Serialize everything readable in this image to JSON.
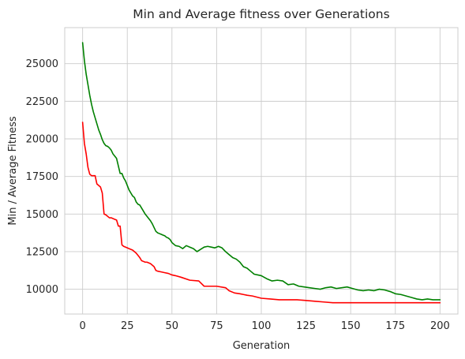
{
  "chart_data": {
    "type": "line",
    "title": "Min and Average fitness over Generations",
    "xlabel": "Generation",
    "ylabel": "Min / Average Fitness",
    "xlim": [
      -10,
      210
    ],
    "ylim": [
      8350,
      27400
    ],
    "xticks": [
      0,
      25,
      50,
      75,
      100,
      125,
      150,
      175,
      200
    ],
    "yticks": [
      10000,
      12500,
      15000,
      17500,
      20000,
      22500,
      25000
    ],
    "ytick_labels": [
      "10000",
      "12500",
      "15000",
      "17500",
      "20000",
      "22500",
      "25000"
    ],
    "grid": true,
    "series": [
      {
        "color": "#008000",
        "x": [
          0,
          1,
          2,
          3,
          4,
          5,
          6,
          7,
          8,
          9,
          10,
          11,
          12,
          13,
          14,
          15,
          16,
          17,
          18,
          19,
          20,
          21,
          22,
          23,
          24,
          25,
          26,
          27,
          28,
          29,
          30,
          31,
          32,
          33,
          34,
          35,
          36,
          37,
          38,
          39,
          40,
          41,
          42,
          43,
          44,
          45,
          46,
          47,
          48,
          49,
          50,
          52,
          54,
          56,
          58,
          60,
          62,
          64,
          66,
          68,
          70,
          72,
          74,
          76,
          78,
          80,
          82,
          84,
          86,
          88,
          90,
          92,
          94,
          96,
          98,
          100,
          103,
          106,
          109,
          112,
          115,
          118,
          121,
          124,
          127,
          130,
          133,
          136,
          139,
          142,
          145,
          148,
          151,
          154,
          157,
          160,
          163,
          166,
          169,
          172,
          175,
          178,
          181,
          184,
          187,
          190,
          193,
          196,
          200
        ],
        "values": [
          26400,
          25200,
          24300,
          23600,
          22900,
          22300,
          21800,
          21400,
          21000,
          20600,
          20300,
          19950,
          19700,
          19550,
          19500,
          19400,
          19250,
          19000,
          18850,
          18700,
          18200,
          17700,
          17700,
          17400,
          17200,
          16900,
          16600,
          16400,
          16200,
          16100,
          15800,
          15650,
          15600,
          15400,
          15200,
          15000,
          14850,
          14700,
          14550,
          14350,
          14100,
          13850,
          13750,
          13700,
          13650,
          13600,
          13550,
          13450,
          13400,
          13300,
          13100,
          12900,
          12850,
          12700,
          12900,
          12800,
          12700,
          12500,
          12650,
          12800,
          12850,
          12800,
          12750,
          12850,
          12750,
          12500,
          12300,
          12100,
          12000,
          11800,
          11500,
          11400,
          11200,
          11000,
          10950,
          10900,
          10700,
          10550,
          10600,
          10550,
          10300,
          10350,
          10200,
          10150,
          10100,
          10050,
          10000,
          10100,
          10150,
          10050,
          10100,
          10150,
          10050,
          9950,
          9900,
          9950,
          9900,
          10000,
          9950,
          9850,
          9700,
          9650,
          9550,
          9450,
          9350,
          9300,
          9350,
          9300,
          9300
        ]
      },
      {
        "color": "#ff0000",
        "x": [
          0,
          1,
          2,
          3,
          4,
          5,
          7,
          8,
          10,
          11,
          12,
          13,
          15,
          16,
          18,
          19,
          20,
          21,
          22,
          23,
          25,
          26,
          28,
          30,
          32,
          33,
          34,
          35,
          36,
          38,
          40,
          41,
          42,
          44,
          46,
          48,
          50,
          52,
          55,
          60,
          65,
          68,
          72,
          75,
          80,
          82,
          85,
          88,
          90,
          92,
          95,
          100,
          105,
          110,
          120,
          125,
          130,
          135,
          140,
          145,
          150,
          160,
          170,
          180,
          190,
          200
        ],
        "values": [
          21100,
          19700,
          19000,
          18100,
          17650,
          17550,
          17550,
          17000,
          16800,
          16400,
          15000,
          14950,
          14750,
          14750,
          14650,
          14600,
          14200,
          14200,
          12950,
          12850,
          12750,
          12700,
          12600,
          12400,
          12100,
          11900,
          11850,
          11800,
          11800,
          11700,
          11500,
          11250,
          11200,
          11150,
          11100,
          11050,
          10950,
          10900,
          10800,
          10600,
          10550,
          10200,
          10200,
          10200,
          10100,
          9900,
          9750,
          9700,
          9650,
          9600,
          9550,
          9400,
          9350,
          9300,
          9300,
          9250,
          9200,
          9150,
          9100,
          9100,
          9100,
          9100,
          9100,
          9100,
          9100,
          9100
        ]
      }
    ]
  }
}
